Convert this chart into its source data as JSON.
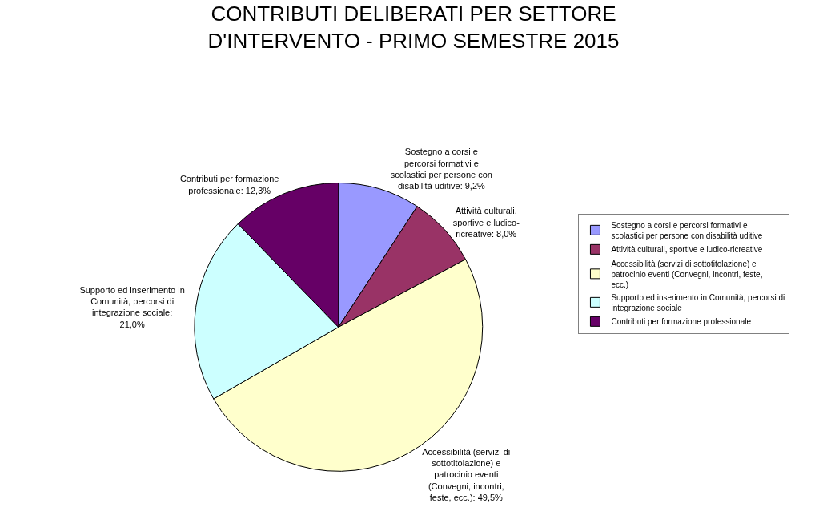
{
  "chart_data": {
    "type": "pie",
    "title": "CONTRIBUTI DELIBERATI PER SETTORE D'INTERVENTO - PRIMO SEMESTRE 2015",
    "categories": [
      "Sostegno a corsi e percorsi formativi e scolastici per persone con disabilità uditive",
      "Attività culturali, sportive e ludico-ricreative",
      "Accessibilità (servizi di sottotitolazione) e patrocinio eventi (Convegni, incontri, feste, ecc.)",
      "Supporto ed inserimento in Comunità, percorsi di integrazione sociale",
      "Contributi per formazione professionale"
    ],
    "values": [
      9.2,
      8.0,
      49.5,
      21.0,
      12.3
    ],
    "colors": [
      "#9999ff",
      "#993366",
      "#ffffcc",
      "#ccffff",
      "#660066"
    ],
    "value_labels": [
      "Sostegno a corsi e percorsi formativi e scolastici per persone con disabilità uditive: 9,2%",
      "Attività culturali, sportive e ludico-ricreative: 8,0%",
      "Accessibilità (servizi di sottotitolazione) e patrocinio eventi (Convegni, incontri, feste, ecc.): 49,5%",
      "Supporto ed inserimento in Comunità, percorsi di integrazione sociale: 21,0%",
      "Contributi per formazione professionale: 12,3%"
    ],
    "legend": "right"
  }
}
